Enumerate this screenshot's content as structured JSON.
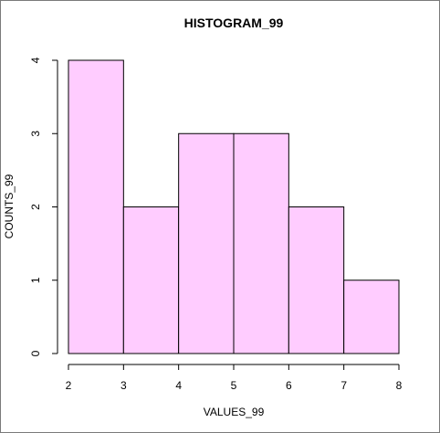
{
  "chart_data": {
    "type": "bar",
    "title": "HISTOGRAM_99",
    "xlabel": "VALUES_99",
    "ylabel": "COUNTS_99",
    "bins": [
      {
        "start": 2,
        "end": 3,
        "count": 4
      },
      {
        "start": 3,
        "end": 4,
        "count": 2
      },
      {
        "start": 4,
        "end": 5,
        "count": 3
      },
      {
        "start": 5,
        "end": 6,
        "count": 3
      },
      {
        "start": 6,
        "end": 7,
        "count": 2
      },
      {
        "start": 7,
        "end": 8,
        "count": 1
      }
    ],
    "xlim": [
      2,
      8
    ],
    "ylim": [
      0,
      4
    ],
    "x_ticks": [
      "2",
      "3",
      "4",
      "5",
      "6",
      "7",
      "8"
    ],
    "y_ticks": [
      "0",
      "1",
      "2",
      "3",
      "4"
    ],
    "grid": false,
    "bar_color": "#ffccff",
    "edge_color": "#000000"
  }
}
